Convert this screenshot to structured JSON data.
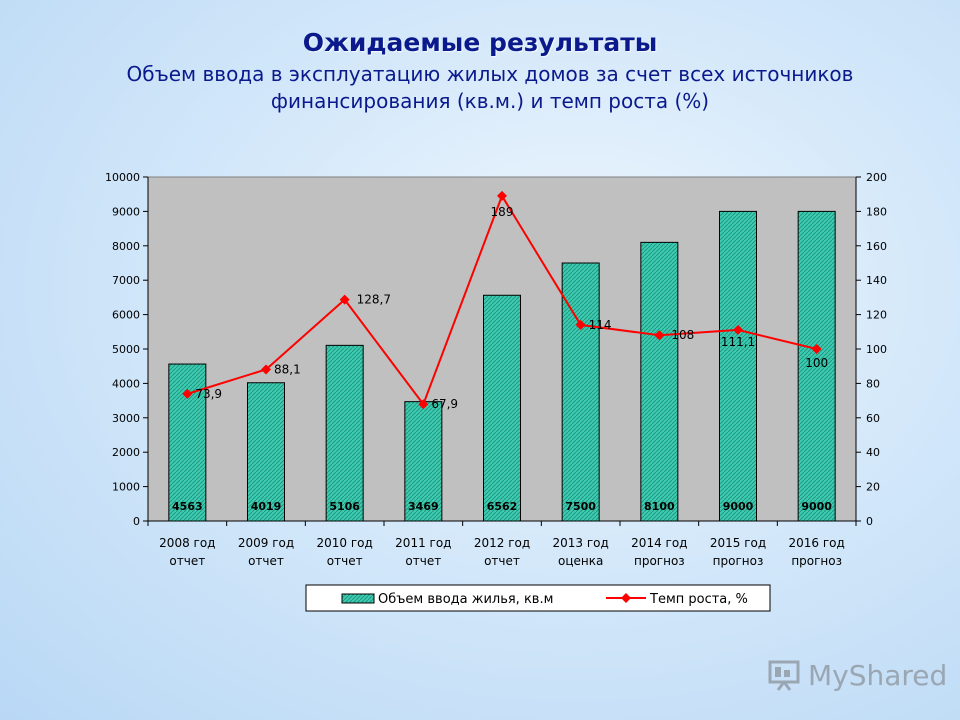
{
  "slide": {
    "title": "Ожидаемые результаты",
    "subtitle": "Объем ввода в эксплуатацию жилых домов за счет всех источников финансирования (кв.м.) и темп роста (%)"
  },
  "chart_data": {
    "type": "bar",
    "categories": [
      [
        "2008 год",
        "отчет"
      ],
      [
        "2009 год",
        "отчет"
      ],
      [
        "2010 год",
        "отчет"
      ],
      [
        "2011 год",
        "отчет"
      ],
      [
        "2012 год",
        "отчет"
      ],
      [
        "2013 год",
        "оценка"
      ],
      [
        "2014 год",
        "прогноз"
      ],
      [
        "2015 год",
        "прогноз"
      ],
      [
        "2016 год",
        "прогноз"
      ]
    ],
    "series": [
      {
        "name": "Объем ввода жилья, кв.м",
        "type": "bar",
        "axis": "left",
        "values": [
          4563,
          4019,
          5106,
          3469,
          6562,
          7500,
          8100,
          9000,
          9000
        ],
        "labels": [
          "4563",
          "4019",
          "5106",
          "3469",
          "6562",
          "7500",
          "8100",
          "9000",
          "9000"
        ],
        "color": "#3ccbb0"
      },
      {
        "name": "Темп роста, %",
        "type": "line",
        "axis": "right",
        "values": [
          73.9,
          88.1,
          128.7,
          67.9,
          189,
          114,
          108,
          111.1,
          100
        ],
        "labels": [
          "73,9",
          "88,1",
          "128,7",
          "67,9",
          "189",
          "114",
          "108",
          "111,1",
          "100"
        ],
        "color": "#ff0000"
      }
    ],
    "y_left": {
      "min": 0,
      "max": 10000,
      "ticks": [
        0,
        1000,
        2000,
        3000,
        4000,
        5000,
        6000,
        7000,
        8000,
        9000,
        10000
      ]
    },
    "y_right": {
      "min": 0,
      "max": 200,
      "ticks": [
        0,
        20,
        40,
        60,
        80,
        100,
        120,
        140,
        160,
        180,
        200
      ]
    },
    "plot_background": "#c0c0c0",
    "grid": false,
    "legend_position": "bottom"
  },
  "watermark": {
    "text": "MyShared"
  }
}
